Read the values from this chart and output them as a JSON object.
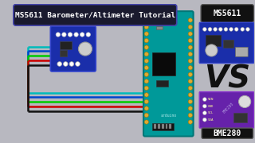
{
  "background_color": "#b8b8c0",
  "title_text": "MS5611 Barometer/Altimeter Tutorial",
  "title_bg": "#1a1a2e",
  "title_text_color": "#ffffff",
  "vs_text": "VS",
  "ms5611_label": "MS5611",
  "bme280_label": "BME280",
  "label_bg": "#111111",
  "label_text_color": "#ffffff",
  "wire_colors": [
    "#00bbbb",
    "#0044cc",
    "#00cc00",
    "#cc0000",
    "#111111"
  ],
  "arduino_body": "#009999",
  "arduino_chip": "#0a0a0a",
  "ms5611_board_color": "#1a2eaa",
  "bme280_board_color": "#6622aa",
  "pin_color": "#ddaa33",
  "pin_edge": "#aa7700"
}
